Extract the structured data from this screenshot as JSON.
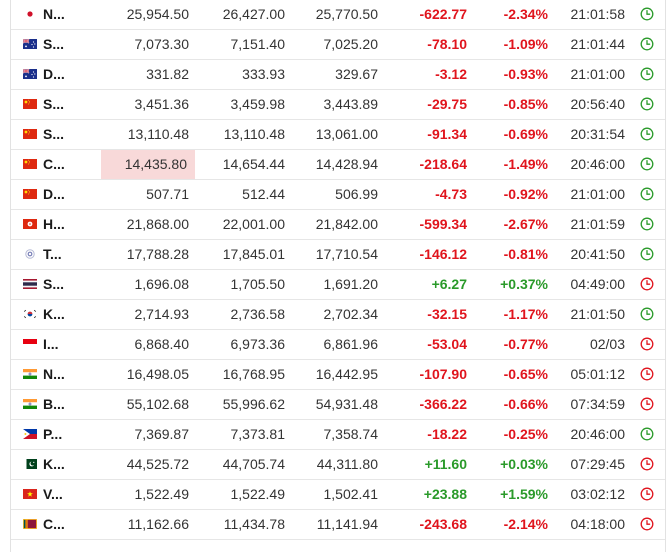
{
  "colors": {
    "up": "#2a9a2a",
    "down": "#e0141d",
    "highlight": "#f8d9d9"
  },
  "rows": [
    {
      "flag": "japan-flag",
      "name": "N...",
      "last": "25,954.50",
      "high": "26,427.00",
      "low": "25,770.50",
      "chg": "-622.77",
      "chg_pct": "-2.34%",
      "time": "21:01:58",
      "dir": "down",
      "status": "open"
    },
    {
      "flag": "australia-flag",
      "name": "S...",
      "last": "7,073.30",
      "high": "7,151.40",
      "low": "7,025.20",
      "chg": "-78.10",
      "chg_pct": "-1.09%",
      "time": "21:01:44",
      "dir": "down",
      "status": "open"
    },
    {
      "flag": "australia-flag",
      "name": "D...",
      "last": "331.82",
      "high": "333.93",
      "low": "329.67",
      "chg": "-3.12",
      "chg_pct": "-0.93%",
      "time": "21:01:00",
      "dir": "down",
      "status": "open"
    },
    {
      "flag": "china-flag",
      "name": "S...",
      "last": "3,451.36",
      "high": "3,459.98",
      "low": "3,443.89",
      "chg": "-29.75",
      "chg_pct": "-0.85%",
      "time": "20:56:40",
      "dir": "down",
      "status": "open"
    },
    {
      "flag": "china-flag",
      "name": "S...",
      "last": "13,110.48",
      "high": "13,110.48",
      "low": "13,061.00",
      "chg": "-91.34",
      "chg_pct": "-0.69%",
      "time": "20:31:54",
      "dir": "down",
      "status": "open"
    },
    {
      "flag": "china-flag",
      "name": "C...",
      "last": "14,435.80",
      "high": "14,654.44",
      "low": "14,428.94",
      "chg": "-218.64",
      "chg_pct": "-1.49%",
      "time": "20:46:00",
      "dir": "down",
      "status": "open",
      "highlight": true
    },
    {
      "flag": "china-flag",
      "name": "D...",
      "last": "507.71",
      "high": "512.44",
      "low": "506.99",
      "chg": "-4.73",
      "chg_pct": "-0.92%",
      "time": "21:01:00",
      "dir": "down",
      "status": "open"
    },
    {
      "flag": "hong-kong-flag",
      "name": "H...",
      "last": "21,868.00",
      "high": "22,001.00",
      "low": "21,842.00",
      "chg": "-599.34",
      "chg_pct": "-2.67%",
      "time": "21:01:59",
      "dir": "down",
      "status": "open"
    },
    {
      "flag": "taiwan-flag",
      "name": "T...",
      "last": "17,788.28",
      "high": "17,845.01",
      "low": "17,710.54",
      "chg": "-146.12",
      "chg_pct": "-0.81%",
      "time": "20:41:50",
      "dir": "down",
      "status": "open"
    },
    {
      "flag": "thailand-flag",
      "name": "S...",
      "last": "1,696.08",
      "high": "1,705.50",
      "low": "1,691.20",
      "chg": "+6.27",
      "chg_pct": "+0.37%",
      "time": "04:49:00",
      "dir": "up",
      "status": "closed"
    },
    {
      "flag": "south-korea-flag",
      "name": "K...",
      "last": "2,714.93",
      "high": "2,736.58",
      "low": "2,702.34",
      "chg": "-32.15",
      "chg_pct": "-1.17%",
      "time": "21:01:50",
      "dir": "down",
      "status": "open"
    },
    {
      "flag": "indonesia-flag",
      "name": "I...",
      "last": "6,868.40",
      "high": "6,973.36",
      "low": "6,861.96",
      "chg": "-53.04",
      "chg_pct": "-0.77%",
      "time": "02/03",
      "dir": "down",
      "status": "closed"
    },
    {
      "flag": "india-flag",
      "name": "N...",
      "last": "16,498.05",
      "high": "16,768.95",
      "low": "16,442.95",
      "chg": "-107.90",
      "chg_pct": "-0.65%",
      "time": "05:01:12",
      "dir": "down",
      "status": "closed"
    },
    {
      "flag": "india-flag",
      "name": "B...",
      "last": "55,102.68",
      "high": "55,996.62",
      "low": "54,931.48",
      "chg": "-366.22",
      "chg_pct": "-0.66%",
      "time": "07:34:59",
      "dir": "down",
      "status": "closed"
    },
    {
      "flag": "philippines-flag",
      "name": "P...",
      "last": "7,369.87",
      "high": "7,373.81",
      "low": "7,358.74",
      "chg": "-18.22",
      "chg_pct": "-0.25%",
      "time": "20:46:00",
      "dir": "down",
      "status": "open"
    },
    {
      "flag": "pakistan-flag",
      "name": "K...",
      "last": "44,525.72",
      "high": "44,705.74",
      "low": "44,311.80",
      "chg": "+11.60",
      "chg_pct": "+0.03%",
      "time": "07:29:45",
      "dir": "up",
      "status": "closed"
    },
    {
      "flag": "vietnam-flag",
      "name": "V...",
      "last": "1,522.49",
      "high": "1,522.49",
      "low": "1,502.41",
      "chg": "+23.88",
      "chg_pct": "+1.59%",
      "time": "03:02:12",
      "dir": "up",
      "status": "closed"
    },
    {
      "flag": "sri-lanka-flag",
      "name": "C...",
      "last": "11,162.66",
      "high": "11,434.78",
      "low": "11,141.94",
      "chg": "-243.68",
      "chg_pct": "-2.14%",
      "time": "04:18:00",
      "dir": "down",
      "status": "closed"
    }
  ]
}
